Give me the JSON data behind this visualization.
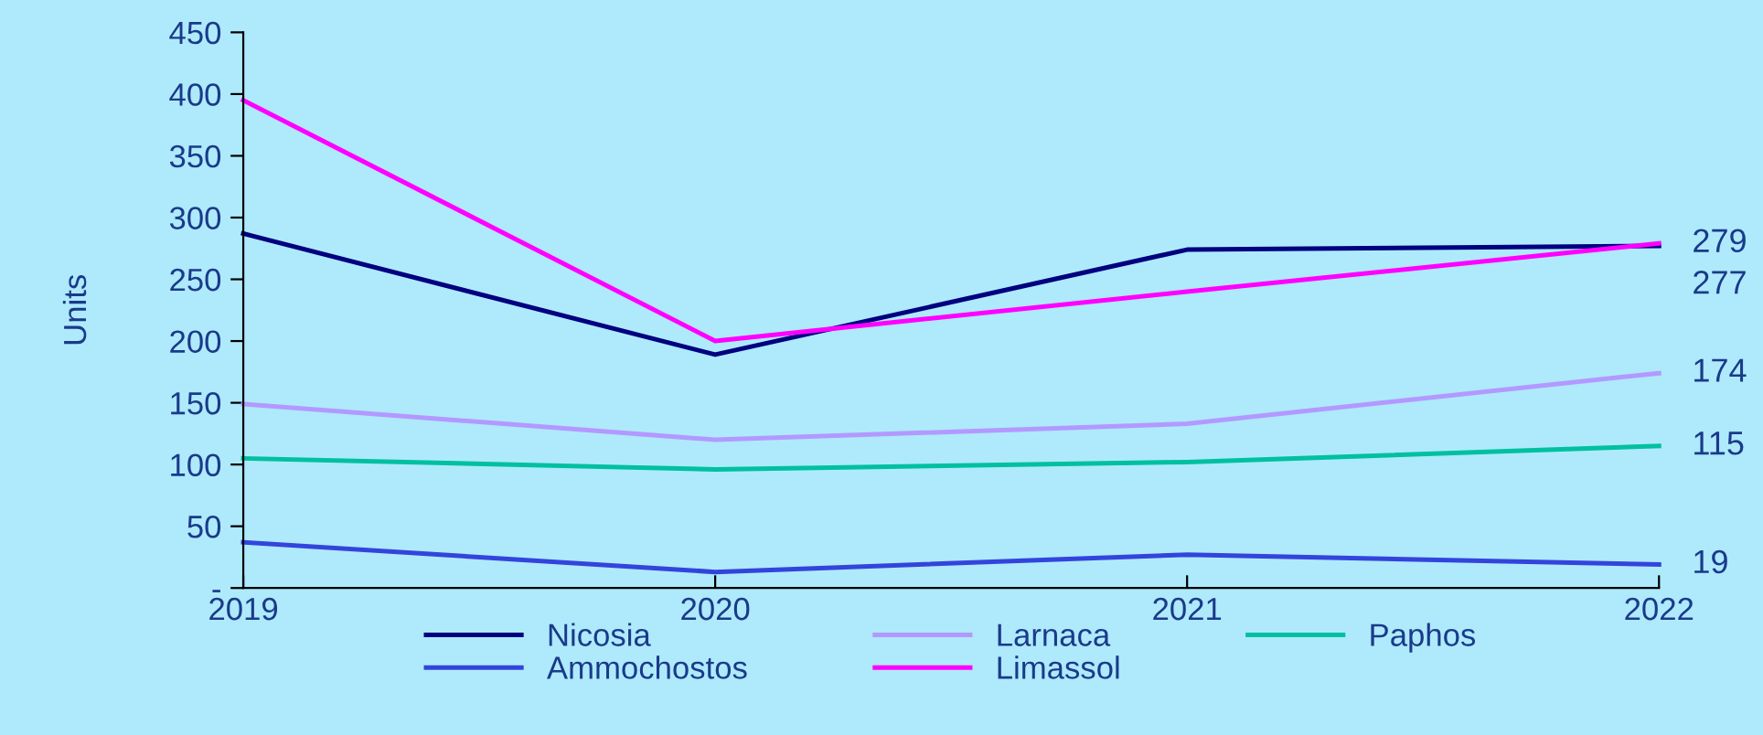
{
  "chart_data": {
    "type": "line",
    "ylabel": "Units",
    "categories": [
      "2019",
      "2020",
      "2021",
      "2022"
    ],
    "ylim": [
      0,
      450
    ],
    "yticks": [
      {
        "value": 0,
        "label": "-"
      },
      50,
      100,
      150,
      200,
      250,
      300,
      350,
      400,
      450
    ],
    "grid": false,
    "legend": "bottom",
    "marker": "none",
    "line_style": "solid",
    "series": [
      {
        "name": "Nicosia",
        "color": "#000080",
        "values": [
          287,
          189,
          274,
          277
        ],
        "value_labels": [
          null,
          null,
          null,
          "277"
        ]
      },
      {
        "name": "Ammochostos",
        "color": "#3344dd",
        "values": [
          37,
          13,
          27,
          19
        ],
        "value_labels": [
          null,
          null,
          null,
          "19"
        ]
      },
      {
        "name": "Larnaca",
        "color": "#b399ff",
        "values": [
          149,
          120,
          133,
          174
        ],
        "value_labels": [
          null,
          null,
          null,
          "174"
        ]
      },
      {
        "name": "Limassol",
        "color": "#ff00ff",
        "values": [
          395,
          200,
          240,
          279
        ],
        "value_labels": [
          null,
          null,
          null,
          "279"
        ]
      },
      {
        "name": "Paphos",
        "color": "#00c0a0",
        "values": [
          105,
          96,
          102,
          115
        ],
        "value_labels": [
          null,
          null,
          null,
          "115"
        ]
      }
    ]
  }
}
